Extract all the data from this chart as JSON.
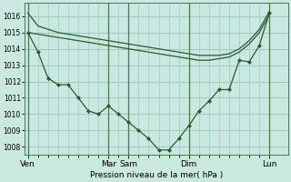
{
  "background_color": "#c8e8e0",
  "grid_color": "#a0c8c0",
  "line_color": "#2d5a2d",
  "marker_color": "#2d5a2d",
  "xlabel": "Pression niveau de la mer( hPa )",
  "ylim": [
    1007.5,
    1016.8
  ],
  "yticks": [
    1008,
    1009,
    1010,
    1011,
    1012,
    1013,
    1014,
    1015,
    1016
  ],
  "day_labels": [
    "Ven",
    "Mar",
    "Sam",
    "Dim",
    "Lun"
  ],
  "day_x": [
    0,
    96,
    120,
    192,
    288
  ],
  "xlim": [
    -4,
    310
  ],
  "series1_x": [
    0,
    12,
    24,
    36,
    48,
    60,
    72,
    84,
    96,
    108,
    120,
    132,
    144,
    156,
    168,
    180,
    192,
    204,
    216,
    228,
    240,
    252,
    264,
    276,
    288
  ],
  "series1_y": [
    1016.2,
    1015.4,
    1015.2,
    1015.0,
    1014.9,
    1014.8,
    1014.7,
    1014.6,
    1014.5,
    1014.4,
    1014.3,
    1014.2,
    1014.1,
    1014.0,
    1013.9,
    1013.8,
    1013.7,
    1013.6,
    1013.6,
    1013.6,
    1013.7,
    1014.0,
    1014.5,
    1015.2,
    1016.3
  ],
  "series2_x": [
    0,
    12,
    24,
    36,
    48,
    60,
    72,
    84,
    96,
    108,
    120,
    132,
    144,
    156,
    168,
    180,
    192,
    204,
    216,
    228,
    240,
    252,
    264,
    276,
    288
  ],
  "series2_y": [
    1015.0,
    1014.9,
    1014.8,
    1014.7,
    1014.6,
    1014.5,
    1014.4,
    1014.3,
    1014.2,
    1014.1,
    1014.0,
    1013.9,
    1013.8,
    1013.7,
    1013.6,
    1013.5,
    1013.4,
    1013.3,
    1013.3,
    1013.4,
    1013.5,
    1013.8,
    1014.3,
    1015.0,
    1016.1
  ],
  "series3_x": [
    0,
    12,
    24,
    36,
    48,
    60,
    72,
    84,
    96,
    108,
    120,
    132,
    144,
    156,
    168,
    180,
    192,
    204,
    216,
    228,
    240,
    252,
    264,
    276,
    288
  ],
  "series3_y": [
    1015.0,
    1013.8,
    1012.2,
    1011.8,
    1011.8,
    1011.0,
    1010.2,
    1010.0,
    1010.5,
    1010.0,
    1009.5,
    1009.0,
    1008.5,
    1007.8,
    1007.8,
    1008.5,
    1009.3,
    1010.2,
    1010.8,
    1011.5,
    1011.5,
    1013.3,
    1013.2,
    1014.2,
    1016.2
  ],
  "xtick_minor_positions": [
    0,
    12,
    24,
    36,
    48,
    60,
    72,
    84,
    96,
    108,
    120,
    132,
    144,
    156,
    168,
    180,
    192,
    204,
    216,
    228,
    240,
    252,
    264,
    276,
    288
  ]
}
